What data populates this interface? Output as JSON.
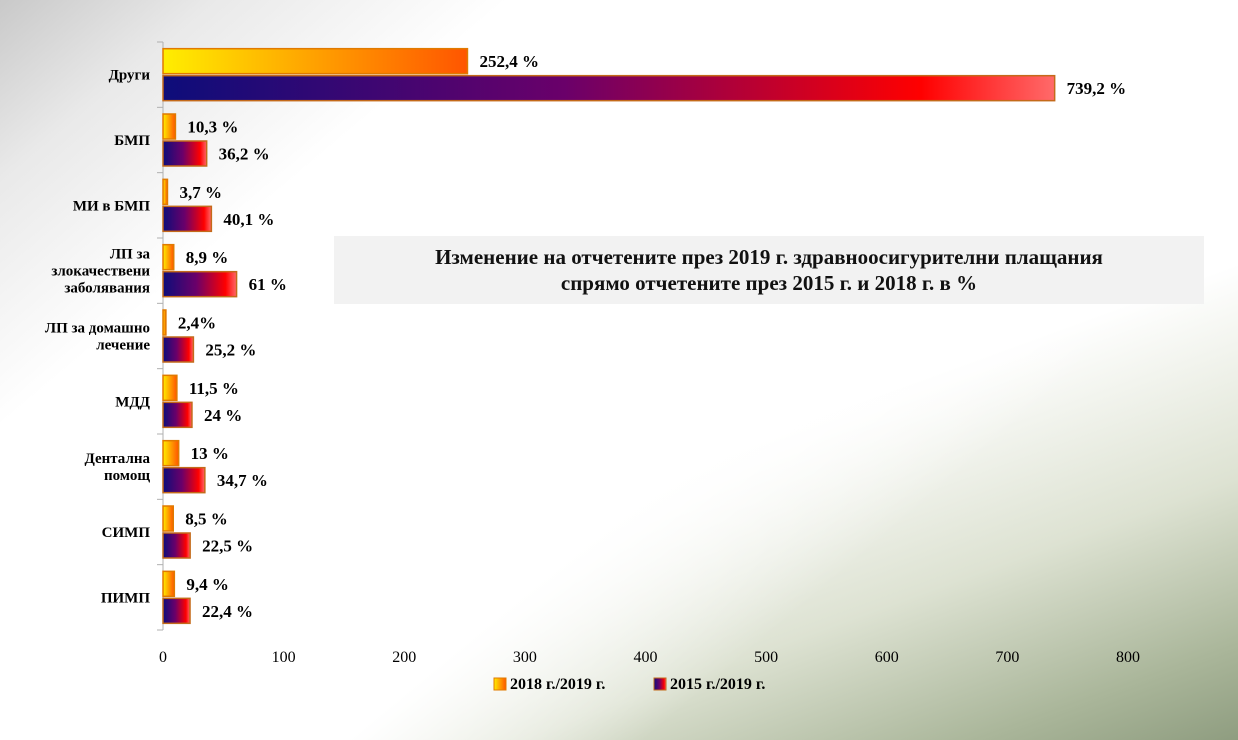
{
  "chart_data": {
    "type": "bar",
    "orientation": "horizontal",
    "title_lines": [
      "Изменение на отчетените през 2019 г. здравноосигурителни плащания",
      "спрямо отчетените през 2015 г. и 2018 г. в %"
    ],
    "categories": [
      [
        "Други"
      ],
      [
        "БМП"
      ],
      [
        "МИ в БМП"
      ],
      [
        "ЛП за",
        "злокачествени",
        "заболявания"
      ],
      [
        "ЛП за домашно",
        "лечение"
      ],
      [
        "МДД"
      ],
      [
        "Дентална",
        "помощ"
      ],
      [
        "СИМП"
      ],
      [
        "ПИМП"
      ]
    ],
    "series": [
      {
        "name": "2018 г./2019 г.",
        "values": [
          252.4,
          10.3,
          3.7,
          8.9,
          2.4,
          11.5,
          13,
          8.5,
          9.4
        ],
        "labels": [
          "252,4 %",
          "10,3 %",
          "3,7 %",
          "8,9 %",
          "2,4%",
          "11,5 %",
          "13 %",
          "8,5 %",
          "9,4 %"
        ],
        "colors": [
          "#ffee00",
          "#ff9900",
          "#ff5500"
        ],
        "border": "#e07a00"
      },
      {
        "name": "2015 г./2019 г.",
        "values": [
          739.2,
          36.2,
          40.1,
          61,
          25.2,
          24,
          34.7,
          22.5,
          22.4
        ],
        "labels": [
          "739,2 %",
          "36,2 %",
          "40,1 %",
          "61 %",
          "25,2 %",
          "24  %",
          "34,7  %",
          "22,5 %",
          "22,4 %"
        ],
        "colors": [
          "#0d0d7a",
          "#6a006a",
          "#ff0000",
          "#ff6a6a"
        ],
        "border": "#c46a1a"
      }
    ],
    "x_ticks": [
      0,
      100,
      200,
      300,
      400,
      500,
      600,
      700,
      800
    ],
    "xlim": [
      0,
      800
    ],
    "grid": false,
    "legend_position": "bottom"
  }
}
